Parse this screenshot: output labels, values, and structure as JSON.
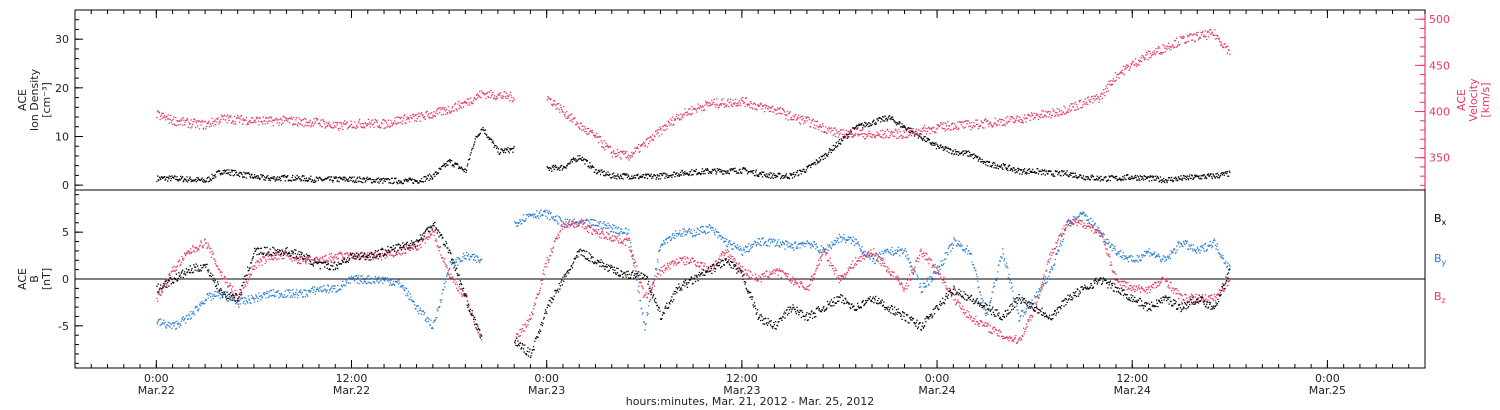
{
  "chart_data": [
    {
      "type": "scatter",
      "panel": "top",
      "ylabel_lines": [
        "ACE",
        "Ion Density",
        "[cm⁻³]"
      ],
      "ylim": [
        -1,
        36
      ],
      "yticks": [
        0,
        10,
        20,
        30
      ],
      "ylabel_right_lines": [
        "ACE",
        "Velocity",
        "[km/s]"
      ],
      "ylim_right": [
        315,
        510
      ],
      "yticks_right": [
        350,
        400,
        450,
        500
      ],
      "right_axis_color": "#e8385c",
      "series": [
        {
          "axis": "left",
          "color": "#000000",
          "x": [
            0.0,
            1,
            2,
            3,
            4,
            5,
            6,
            7,
            8,
            9,
            10,
            11,
            12,
            13,
            14,
            15,
            16,
            17,
            18,
            19,
            19.5,
            20,
            21,
            22,
            23,
            24,
            25,
            26,
            27,
            28,
            29,
            30,
            31,
            32,
            33,
            34,
            35,
            36,
            37,
            38,
            39,
            40,
            41,
            42,
            43,
            44,
            45,
            46,
            47,
            48,
            49,
            50,
            51,
            52,
            53,
            54,
            55,
            56,
            57,
            58,
            59,
            60,
            61,
            62,
            63,
            64,
            65,
            66
          ],
          "y": [
            1.5,
            1.5,
            1.3,
            1.0,
            3.0,
            2.5,
            1.8,
            1.5,
            1.6,
            1.5,
            1.2,
            1.3,
            1.3,
            1.2,
            1.0,
            1.0,
            1.0,
            2.0,
            5.0,
            3.0,
            9.0,
            12.0,
            7.0,
            7.5,
            null,
            3.5,
            3.8,
            6.0,
            3.0,
            2.0,
            2.0,
            1.8,
            2.0,
            2.5,
            2.8,
            3.0,
            3.0,
            3.2,
            2.5,
            2.0,
            2.0,
            3.5,
            6.0,
            9.0,
            12.0,
            13.0,
            14.0,
            12.0,
            10.0,
            8.0,
            7.0,
            6.5,
            4.5,
            4.0,
            3.0,
            3.0,
            2.5,
            2.5,
            1.8,
            1.5,
            1.5,
            1.8,
            1.5,
            1.2,
            1.5,
            1.8,
            2.0,
            2.5
          ]
        },
        {
          "axis": "right",
          "color": "#e8385c",
          "x": [
            0.0,
            1,
            2,
            3,
            4,
            5,
            6,
            7,
            8,
            9,
            10,
            11,
            12,
            13,
            14,
            15,
            16,
            17,
            18,
            19,
            20,
            21,
            22,
            23,
            24,
            25,
            26,
            27,
            28,
            29,
            30,
            31,
            32,
            33,
            34,
            35,
            36,
            37,
            38,
            39,
            40,
            41,
            42,
            43,
            44,
            45,
            46,
            47,
            48,
            49,
            50,
            51,
            52,
            53,
            54,
            55,
            56,
            57,
            58,
            59,
            60,
            61,
            62,
            63,
            64,
            65,
            66
          ],
          "y": [
            397,
            391,
            388,
            386,
            393,
            392,
            391,
            390,
            391,
            389,
            389,
            384,
            387,
            388,
            387,
            392,
            394,
            398,
            403,
            410,
            420,
            418,
            416,
            null,
            416,
            401,
            385,
            373,
            356,
            352,
            365,
            380,
            395,
            403,
            409,
            410,
            412,
            406,
            403,
            395,
            390,
            383,
            376,
            378,
            374,
            377,
            376,
            380,
            383,
            386,
            386,
            388,
            390,
            392,
            396,
            398,
            404,
            410,
            416,
            440,
            452,
            462,
            470,
            478,
            482,
            485,
            465
          ]
        }
      ]
    },
    {
      "type": "scatter",
      "panel": "bottom",
      "ylabel_lines": [
        "ACE",
        "B",
        "[nT]"
      ],
      "ylim": [
        -9.5,
        9.5
      ],
      "yticks": [
        -5,
        0,
        5
      ],
      "zero_line": true,
      "xlabel": "hours:minutes, Mar. 21, 2012 - Mar. 25, 2012",
      "xlim": [
        -5,
        78
      ],
      "xticks": [
        {
          "x": 0,
          "line1": "0:00",
          "line2": "Mar.22"
        },
        {
          "x": 12,
          "line1": "12:00",
          "line2": "Mar.22"
        },
        {
          "x": 24,
          "line1": "0:00",
          "line2": "Mar.23"
        },
        {
          "x": 36,
          "line1": "12:00",
          "line2": "Mar.23"
        },
        {
          "x": 48,
          "line1": "0:00",
          "line2": "Mar.24"
        },
        {
          "x": 60,
          "line1": "12:00",
          "line2": "Mar.24"
        },
        {
          "x": 72,
          "line1": "0:00",
          "line2": "Mar.25"
        }
      ],
      "legend": [
        {
          "base": "B",
          "sub": "x",
          "color": "#000000"
        },
        {
          "base": "B",
          "sub": "y",
          "color": "#2a7fd4"
        },
        {
          "base": "B",
          "sub": "z",
          "color": "#e8385c"
        }
      ],
      "series": [
        {
          "name": "Bx",
          "color": "#000000",
          "x": [
            0.0,
            1,
            2,
            3,
            4,
            5,
            6,
            7,
            8,
            9,
            10,
            11,
            12,
            13,
            14,
            15,
            16,
            17,
            18,
            19,
            20,
            21,
            22,
            23,
            24,
            25,
            26,
            27,
            28,
            29,
            30,
            31,
            32,
            33,
            34,
            35,
            36,
            37,
            38,
            39,
            40,
            41,
            42,
            43,
            44,
            45,
            46,
            47,
            48,
            49,
            50,
            51,
            52,
            53,
            54,
            55,
            56,
            57,
            58,
            59,
            60,
            61,
            62,
            63,
            64,
            65,
            66
          ],
          "y": [
            -1,
            0,
            1,
            1.5,
            -1.5,
            -2,
            3,
            3,
            3,
            2.5,
            1.5,
            1.5,
            2.5,
            2.5,
            3,
            3.5,
            4,
            6,
            3,
            -2,
            -6.5,
            null,
            -6.5,
            -8,
            -3,
            0,
            3,
            2,
            1,
            0.5,
            0.5,
            -4,
            -1,
            0,
            1,
            2,
            0.5,
            -4,
            -5,
            -3,
            -4,
            -3,
            -2,
            -3,
            -2,
            -3,
            -4,
            -5,
            -3,
            -1,
            -2,
            -3,
            -4,
            -2,
            -3,
            -4,
            -2,
            -1,
            0,
            -1,
            -2,
            -3,
            -2,
            -3,
            -2,
            -3,
            1
          ]
        },
        {
          "name": "By",
          "color": "#2a7fd4",
          "x": [
            0.0,
            1,
            2,
            3,
            4,
            5,
            6,
            7,
            8,
            9,
            10,
            11,
            12,
            13,
            14,
            15,
            16,
            17,
            18,
            19,
            20,
            21,
            22,
            23,
            24,
            25,
            26,
            27,
            28,
            29,
            30,
            31,
            32,
            33,
            34,
            35,
            36,
            37,
            38,
            39,
            40,
            41,
            42,
            43,
            44,
            45,
            46,
            47,
            48,
            49,
            50,
            51,
            52,
            53,
            54,
            55,
            56,
            57,
            58,
            59,
            60,
            61,
            62,
            63,
            64,
            65,
            66
          ],
          "y": [
            -4.5,
            -5,
            -4,
            -2,
            -1.5,
            -2.5,
            -2,
            -1.5,
            -1.5,
            -1.5,
            -1,
            -1,
            0,
            0,
            0,
            -0.5,
            -3,
            -5,
            1.5,
            2.5,
            2,
            null,
            6,
            7,
            7,
            6,
            6,
            6,
            5.5,
            5,
            -5,
            4,
            5,
            5,
            5.5,
            4,
            3,
            4,
            4,
            3.5,
            4,
            3,
            4.5,
            4,
            2,
            3,
            3,
            -1,
            1,
            4,
            3,
            -4,
            3,
            -4,
            -2,
            1,
            6,
            7,
            5,
            3,
            2,
            3,
            2,
            4,
            3,
            4,
            1
          ]
        },
        {
          "name": "Bz",
          "color": "#e8385c",
          "x": [
            0.0,
            1,
            2,
            3,
            4,
            5,
            6,
            7,
            8,
            9,
            10,
            11,
            12,
            13,
            14,
            15,
            16,
            17,
            18,
            19,
            20,
            21,
            22,
            23,
            24,
            25,
            26,
            27,
            28,
            29,
            30,
            31,
            32,
            33,
            34,
            35,
            36,
            37,
            38,
            39,
            40,
            41,
            42,
            43,
            44,
            45,
            46,
            47,
            48,
            49,
            50,
            51,
            52,
            53,
            54,
            55,
            56,
            57,
            58,
            59,
            60,
            61,
            62,
            63,
            64,
            65,
            66
          ],
          "y": [
            -2,
            1,
            3,
            4,
            0.5,
            -2,
            1.5,
            2.5,
            2.5,
            2,
            2,
            2.5,
            2.5,
            2.5,
            2.5,
            3,
            3.5,
            5,
            0.5,
            -2,
            -6.5,
            null,
            -6.5,
            -4,
            2,
            6,
            6,
            5,
            4.5,
            4,
            -2,
            1,
            2,
            2,
            1,
            3,
            1,
            0,
            1,
            0,
            -1,
            3,
            0,
            2,
            3,
            1,
            -1,
            3,
            1,
            -2,
            -4,
            -5,
            -6,
            -6.5,
            -3,
            3,
            6,
            6,
            5,
            0,
            -1,
            -1,
            0,
            -2,
            -2,
            -2,
            0
          ]
        }
      ]
    }
  ]
}
